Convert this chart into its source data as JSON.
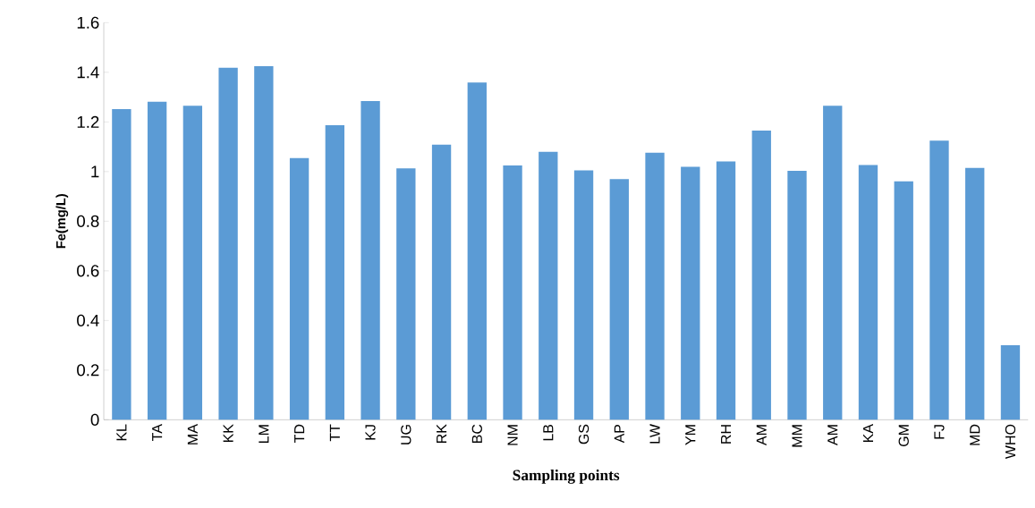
{
  "chart_data": {
    "type": "bar",
    "xlabel": "Sampling points",
    "ylabel": "Fe(mg/L)",
    "categories": [
      "KL",
      "TA",
      "MA",
      "KK",
      "LM",
      "TD",
      "TT",
      "KJ",
      "UG",
      "RK",
      "BC",
      "NM",
      "LB",
      "GS",
      "AP",
      "LW",
      "YM",
      "RH",
      "AM",
      "MM",
      "AM",
      "KA",
      "GM",
      "FJ",
      "MD",
      "WHO"
    ],
    "values": [
      1.252,
      1.281,
      1.265,
      1.418,
      1.425,
      1.054,
      1.187,
      1.284,
      1.013,
      1.108,
      1.359,
      1.025,
      1.08,
      1.005,
      0.97,
      1.076,
      1.019,
      1.041,
      1.165,
      1.003,
      1.265,
      1.026,
      0.961,
      1.125,
      1.015,
      0.3
    ],
    "color": "#5b9bd5",
    "ylim": [
      0,
      1.6
    ],
    "yticks": [
      0,
      0.2,
      0.4,
      0.6,
      0.8,
      1,
      1.2,
      1.4,
      1.6
    ],
    "grid": false
  }
}
